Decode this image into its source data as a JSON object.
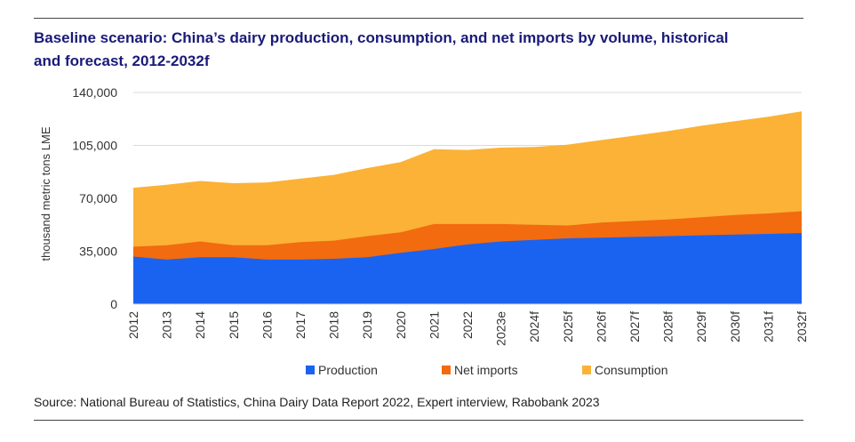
{
  "title_line1": "Baseline scenario: China’s dairy production, consumption, and net imports by volume, historical",
  "title_line2": "and forecast, 2012-2032f",
  "source": "Source: National Bureau of Statistics, China Dairy Data Report 2022, Expert interview, Rabobank 2023",
  "colors": {
    "production": "#1a63f0",
    "net_imports": "#f26b0f",
    "consumption": "#fbb237",
    "title": "#1a1a7a"
  },
  "chart_data": {
    "type": "area",
    "stacked": false,
    "ylabel": "thousand metric tons LME",
    "xlabel": "",
    "ylim": [
      0,
      140000
    ],
    "yticks": [
      0,
      35000,
      70000,
      105000,
      140000
    ],
    "ytick_labels": [
      "0",
      "35,000",
      "70,000",
      "105,000",
      "140,000"
    ],
    "grid": true,
    "legend": "bottom",
    "categories": [
      "2012",
      "2013",
      "2014",
      "2015",
      "2016",
      "2017",
      "2018",
      "2019",
      "2020",
      "2021",
      "2022",
      "2023e",
      "2024f",
      "2025f",
      "2026f",
      "2027f",
      "2028f",
      "2029f",
      "2030f",
      "2031f",
      "2032f"
    ],
    "series": [
      {
        "name": "Consumption",
        "color": "#fbb237",
        "values": [
          77000,
          79000,
          81500,
          80000,
          80500,
          83000,
          85500,
          90000,
          94000,
          102500,
          102000,
          103500,
          104000,
          105500,
          108500,
          111500,
          114500,
          118000,
          121000,
          124000,
          127500
        ]
      },
      {
        "name": "Net imports",
        "color": "#f26b0f",
        "values": [
          38000,
          39000,
          41500,
          39000,
          39000,
          41000,
          42000,
          45000,
          47500,
          53000,
          53000,
          53000,
          52500,
          52000,
          54000,
          55000,
          56000,
          57500,
          59000,
          60000,
          61500
        ]
      },
      {
        "name": "Production",
        "color": "#1a63f0",
        "values": [
          31500,
          29500,
          31000,
          31000,
          29500,
          29500,
          30000,
          31000,
          34000,
          36500,
          39500,
          41500,
          42500,
          43500,
          44000,
          44500,
          45000,
          45500,
          46000,
          46500,
          47000
        ]
      }
    ],
    "legend_entries": [
      "Production",
      "Net imports",
      "Consumption"
    ]
  }
}
